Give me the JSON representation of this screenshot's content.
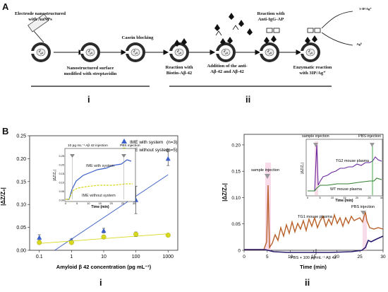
{
  "panelA": {
    "letter": "A",
    "steps": {
      "electrode": "Electrode nanostructured\nwith AuNPs",
      "nanostructured": "Nanostructured surface\nmodified with streptavidin",
      "casein": "Casein blocking",
      "biotin": "Reaction with\nBiotin-Aβ-42",
      "addition": "Addition of the anti-\nAβ-42 and Aβ-42",
      "antiigg": "Reaction with\nAnti-IgG-AP",
      "enzymatic": "Enzymatic reaction\nwith 3IP/Ag⁺",
      "product1": "3-IP/Ag⁺",
      "product2": "Ag⁰"
    },
    "sub_i": "i",
    "sub_ii": "ii"
  },
  "panelB": {
    "letter": "B",
    "sub_i": "i",
    "sub_ii": "ii"
  },
  "chart_data": [
    {
      "type": "scatter",
      "xlabel": "Amyloid β 42 concentration (pg mL⁻¹)",
      "ylabel": "|ΔZ/Z₀|",
      "xscale": "log",
      "xlim": [
        0.05,
        2000
      ],
      "ylim": [
        0,
        0.25
      ],
      "xticks": [
        "0.1",
        "1",
        "10",
        "100",
        "1000"
      ],
      "yticks": [
        "0.00",
        "0.05",
        "0.10",
        "0.15",
        "0.20",
        "0.25"
      ],
      "legend_position": "top-right",
      "series": [
        {
          "name": "IME with system",
          "n_label": "(n=3)",
          "color": "#3a5fc8",
          "marker": "triangle",
          "x": [
            0.1,
            1,
            10,
            100,
            1000
          ],
          "y": [
            0.028,
            0.022,
            0.043,
            0.11,
            0.2
          ],
          "err": [
            0.006,
            0.003,
            0.005,
            0.03,
            0.015
          ]
        },
        {
          "name": "IME without system",
          "n_label": "(n=5)",
          "color": "#d8d81e",
          "marker": "circle",
          "x": [
            0.1,
            1,
            10,
            100,
            1000
          ],
          "y": [
            0.017,
            0.017,
            0.029,
            0.035,
            0.033
          ],
          "err": [
            0.004,
            0.003,
            0.004,
            0.005,
            0.003
          ]
        }
      ],
      "inset": {
        "xlabel": "Time (min)",
        "ylabel": "|ΔZ/Z₀|",
        "xticks": [
          "0",
          "5",
          "10",
          "15",
          "20",
          "25",
          "30"
        ],
        "yticks": [
          "0.00",
          "0.05",
          "0.10",
          "0.15",
          "0.20",
          "0.25"
        ],
        "annotations": {
          "injection": "10 pg mL⁻¹ Aβ 42\ninjection",
          "pbs": "PBS\ninjection",
          "with": "IME with system",
          "without": "IME without system"
        }
      }
    },
    {
      "type": "line",
      "xlabel": "Time (min)",
      "ylabel": "|ΔZ/Z₀|",
      "xlim": [
        0,
        30
      ],
      "ylim": [
        0,
        0.22
      ],
      "xticks": [
        "0",
        "5",
        "10",
        "15",
        "20",
        "25",
        "30"
      ],
      "yticks": [
        "0",
        "0.05",
        "0.10",
        "0.15",
        "0.20"
      ],
      "annotations": {
        "sample": "sample injection",
        "tg1": "TG1  mouse  plasma",
        "pbs": "PBS injection",
        "baseline": "PBS + 100 pg mL⁻¹ Aβ 42"
      },
      "series_colors": {
        "tg1": "#b8612a",
        "baseline": "#2a1a6e"
      },
      "inset": {
        "xlabel": "Time (min)",
        "ylabel": "|ΔZ/Z₀|",
        "xticks": [
          "0",
          "5",
          "10",
          "15",
          "20",
          "25",
          "30"
        ],
        "annotations": {
          "sample": "sample injection",
          "pbs": "PBS injection",
          "tg2": "TG2 mouse plasma",
          "wt": "WT mouse plasma"
        },
        "series_colors": {
          "tg2": "#6a2a9e",
          "wt": "#2f7f2f"
        }
      }
    }
  ]
}
